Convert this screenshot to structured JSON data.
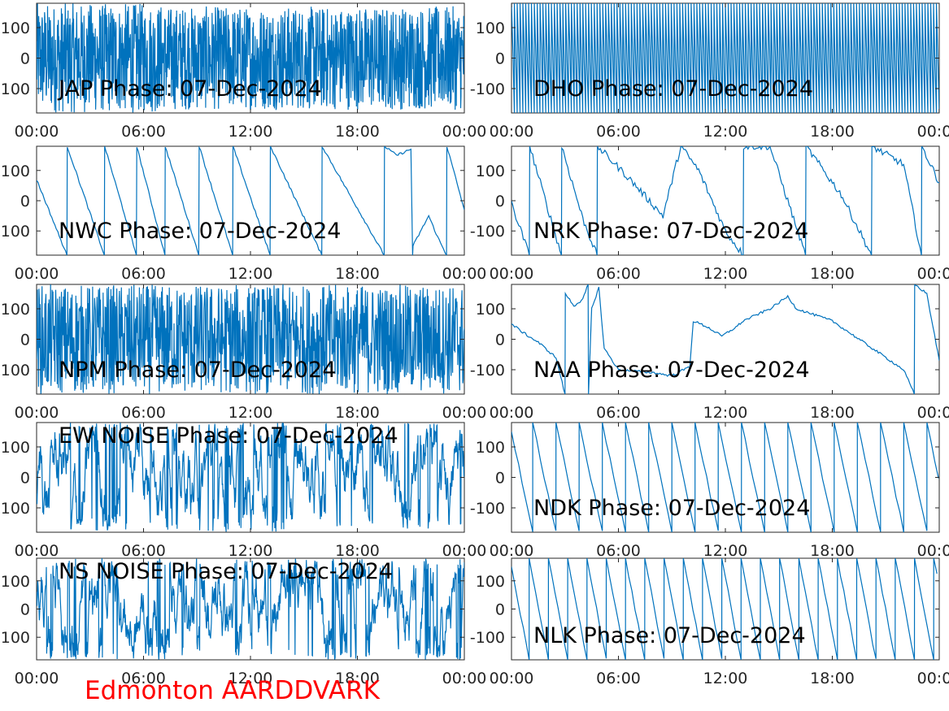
{
  "figure": {
    "footer": "Edmonton AARDDVARK",
    "footer_color": "#ff0000",
    "line_color": "#0072bd",
    "background": "#ffffff"
  },
  "chart_data": [
    {
      "type": "line",
      "title": "JAP Phase: 07-Dec-2024",
      "x_ticks": [
        "00:00",
        "06:00",
        "12:00",
        "18:00",
        "00:00"
      ],
      "y_ticks": [
        "100",
        "0",
        "-100"
      ],
      "ylim": [
        -180,
        180
      ],
      "pattern": "noise_dense_then_sparse"
    },
    {
      "type": "line",
      "title": "DHO Phase: 07-Dec-2024",
      "x_ticks": [
        "00:00",
        "06:00",
        "12:00",
        "18:00",
        "00:00"
      ],
      "y_ticks": [
        "100",
        "0",
        "-100"
      ],
      "ylim": [
        -180,
        180
      ],
      "pattern": "regular_dense_wraps"
    },
    {
      "type": "line",
      "title": "NWC Phase: 07-Dec-2024",
      "x_ticks": [
        "00:00",
        "06:00",
        "12:00",
        "18:00",
        "00:00"
      ],
      "y_ticks": [
        "100",
        "0",
        "-100"
      ],
      "ylim": [
        -180,
        180
      ],
      "pattern": "sawtooth_descending",
      "anchors": [
        [
          0,
          70
        ],
        [
          1.7,
          -180
        ],
        [
          1.72,
          180
        ],
        [
          3.8,
          -180
        ],
        [
          3.82,
          180
        ],
        [
          5.6,
          -180
        ],
        [
          5.62,
          180
        ],
        [
          7.2,
          -180
        ],
        [
          7.22,
          180
        ],
        [
          9.1,
          -180
        ],
        [
          9.12,
          180
        ],
        [
          11.0,
          -180
        ],
        [
          11.02,
          180
        ],
        [
          13.1,
          -180
        ],
        [
          13.12,
          180
        ],
        [
          16.0,
          -180
        ],
        [
          16.02,
          180
        ],
        [
          19.5,
          -180
        ],
        [
          19.52,
          180
        ],
        [
          20.2,
          150
        ],
        [
          21.0,
          170
        ],
        [
          21.1,
          -180
        ],
        [
          21.12,
          -150
        ],
        [
          22.0,
          -50
        ],
        [
          22.5,
          -120
        ],
        [
          23.0,
          -180
        ],
        [
          23.02,
          180
        ],
        [
          24,
          -30
        ]
      ]
    },
    {
      "type": "line",
      "title": "NRK Phase: 07-Dec-2024",
      "x_ticks": [
        "00:00",
        "06:00",
        "12:00",
        "18:00",
        "00:00"
      ],
      "y_ticks": [
        "100",
        "0",
        "-100"
      ],
      "ylim": [
        -180,
        180
      ],
      "pattern": "drifting_noisy_wraps",
      "anchors": [
        [
          0,
          -10
        ],
        [
          1.0,
          -180
        ],
        [
          1.02,
          180
        ],
        [
          2.8,
          -180
        ],
        [
          2.82,
          180
        ],
        [
          4.0,
          -60
        ],
        [
          4.8,
          -180
        ],
        [
          4.82,
          180
        ],
        [
          6.5,
          80
        ],
        [
          8.5,
          -50
        ],
        [
          9.5,
          180
        ],
        [
          10.5,
          100
        ],
        [
          12.0,
          -100
        ],
        [
          13.0,
          -180
        ],
        [
          13.02,
          180
        ],
        [
          14.5,
          180
        ],
        [
          16.5,
          -180
        ],
        [
          16.52,
          180
        ],
        [
          18.5,
          20
        ],
        [
          20.2,
          -180
        ],
        [
          20.22,
          180
        ],
        [
          22.0,
          120
        ],
        [
          23.0,
          -180
        ],
        [
          23.02,
          180
        ],
        [
          24,
          60
        ]
      ]
    },
    {
      "type": "line",
      "title": "NPM Phase: 07-Dec-2024",
      "x_ticks": [
        "00:00",
        "06:00",
        "12:00",
        "18:00",
        "00:00"
      ],
      "y_ticks": [
        "100",
        "0",
        "-100"
      ],
      "ylim": [
        -180,
        180
      ],
      "pattern": "noise_dense"
    },
    {
      "type": "line",
      "title": "NAA Phase: 07-Dec-2024",
      "x_ticks": [
        "00:00",
        "06:00",
        "12:00",
        "18:00",
        "00:00"
      ],
      "y_ticks": [
        "100",
        "0",
        "-100"
      ],
      "ylim": [
        -180,
        180
      ],
      "pattern": "smooth_drift",
      "anchors": [
        [
          0,
          50
        ],
        [
          0.7,
          20
        ],
        [
          1.5,
          -10
        ],
        [
          2.5,
          -60
        ],
        [
          3.0,
          -180
        ],
        [
          3.02,
          150
        ],
        [
          3.5,
          110
        ],
        [
          4.0,
          130
        ],
        [
          4.3,
          180
        ],
        [
          4.32,
          -180
        ],
        [
          4.5,
          100
        ],
        [
          4.9,
          170
        ],
        [
          5.2,
          -30
        ],
        [
          6.0,
          -100
        ],
        [
          8.0,
          -110
        ],
        [
          9.0,
          -120
        ],
        [
          10.0,
          -90
        ],
        [
          10.2,
          60
        ],
        [
          11.0,
          40
        ],
        [
          11.8,
          10
        ],
        [
          12.6,
          40
        ],
        [
          13.0,
          60
        ],
        [
          14.5,
          100
        ],
        [
          15.0,
          120
        ],
        [
          15.5,
          140
        ],
        [
          16.0,
          100
        ],
        [
          18.0,
          60
        ],
        [
          20.0,
          -20
        ],
        [
          22.0,
          -100
        ],
        [
          22.6,
          -180
        ],
        [
          22.62,
          180
        ],
        [
          23.3,
          150
        ],
        [
          24,
          -70
        ]
      ]
    },
    {
      "type": "line",
      "title": "EW NOISE Phase: 07-Dec-2024",
      "x_ticks": [
        "00:00",
        "06:00",
        "12:00",
        "18:00",
        "00:00"
      ],
      "y_ticks": [
        "100",
        "0",
        "-100"
      ],
      "ylim": [
        -180,
        180
      ],
      "pattern": "noise_medium"
    },
    {
      "type": "line",
      "title": "NDK Phase: 07-Dec-2024",
      "x_ticks": [
        "00:00",
        "06:00",
        "12:00",
        "18:00",
        "00:00"
      ],
      "y_ticks": [
        "100",
        "0",
        "-100"
      ],
      "ylim": [
        -180,
        180
      ],
      "pattern": "regular_sawtooth",
      "period_hours": 1.3
    },
    {
      "type": "line",
      "title": "NS NOISE Phase: 07-Dec-2024",
      "x_ticks": [
        "00:00",
        "06:00",
        "12:00",
        "18:00",
        "00:00"
      ],
      "y_ticks": [
        "100",
        "0",
        "-100"
      ],
      "ylim": [
        -180,
        180
      ],
      "pattern": "noise_medium"
    },
    {
      "type": "line",
      "title": "NLK Phase: 07-Dec-2024",
      "x_ticks": [
        "00:00",
        "06:00",
        "12:00",
        "18:00",
        "00:00"
      ],
      "y_ticks": [
        "100",
        "0",
        "-100"
      ],
      "ylim": [
        -180,
        180
      ],
      "pattern": "regular_sawtooth",
      "period_hours": 1.08
    }
  ]
}
